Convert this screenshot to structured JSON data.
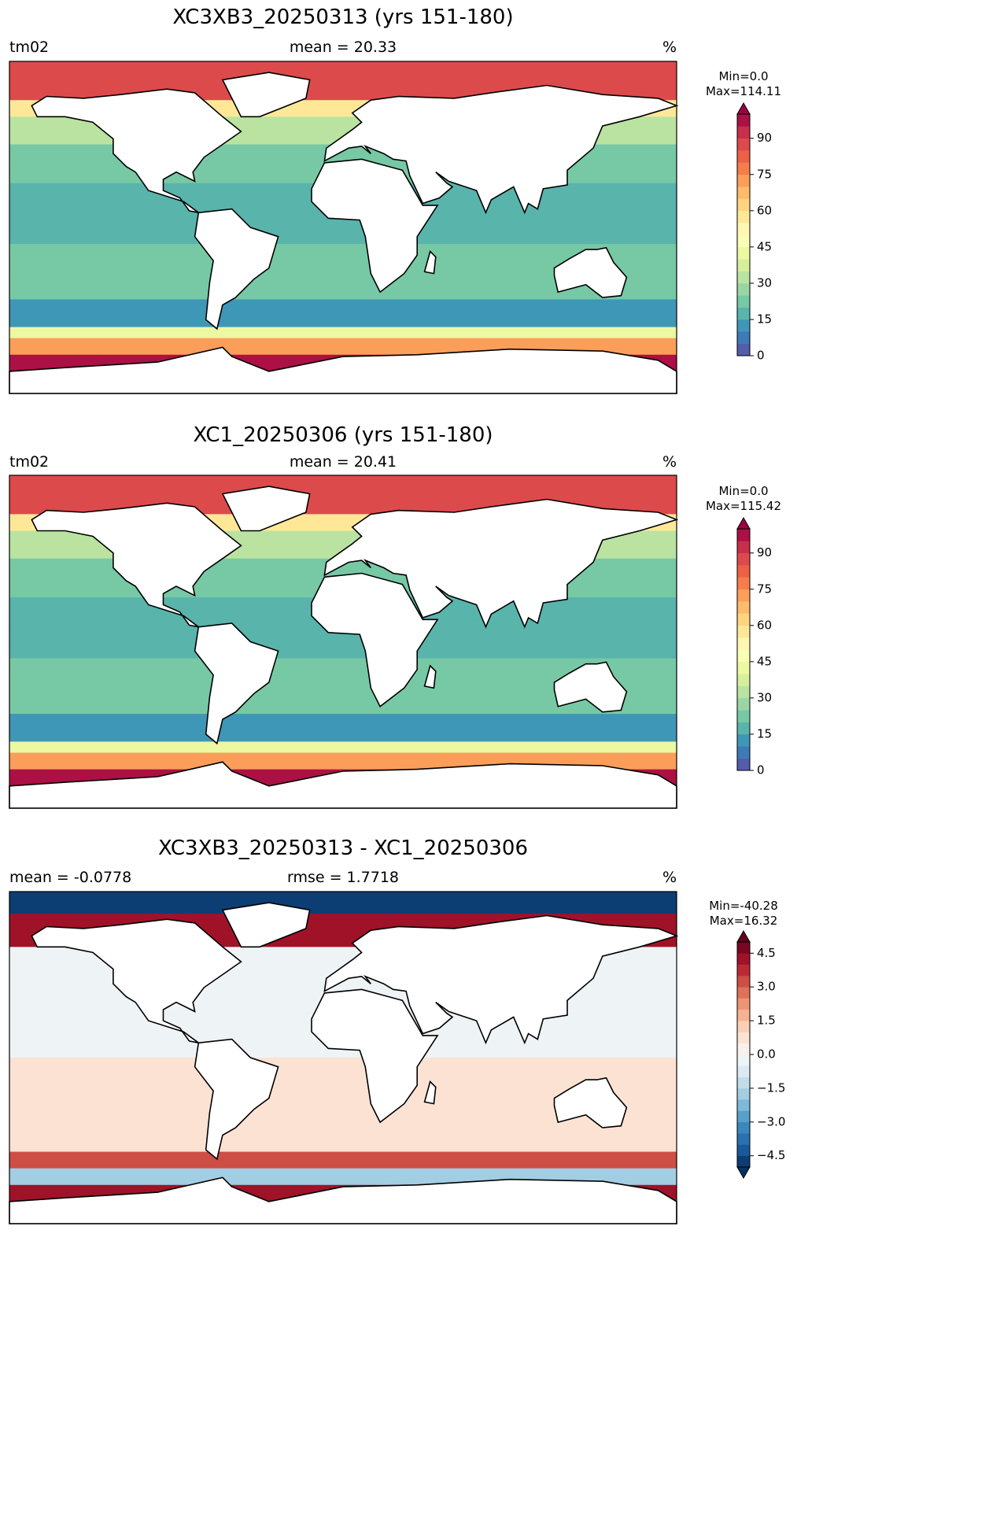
{
  "panels": [
    {
      "title": "XC3XB3_20250313 (yrs 151-180)",
      "left_label": "tm02",
      "center_label": "mean = 20.33",
      "right_label": "%",
      "colorbar": {
        "min_label": "Min=0.0",
        "max_label": "Max=114.11",
        "lim": [
          0,
          100
        ],
        "step": 5,
        "extend": "max",
        "ticks": [
          0,
          15,
          30,
          45,
          60,
          75,
          90
        ],
        "colors": [
          "#5e4fa2",
          "#3288bd",
          "#66c2a5",
          "#abdda4",
          "#e6f598",
          "#ffffbf",
          "#fee08b",
          "#fdae61",
          "#f46d43",
          "#d53e4f",
          "#9e0142"
        ]
      }
    },
    {
      "title": "XC1_20250306 (yrs 151-180)",
      "left_label": "tm02",
      "center_label": "mean = 20.41",
      "right_label": "%",
      "colorbar": {
        "min_label": "Min=0.0",
        "max_label": "Max=115.42",
        "lim": [
          0,
          100
        ],
        "step": 5,
        "extend": "max",
        "ticks": [
          0,
          15,
          30,
          45,
          60,
          75,
          90
        ],
        "colors": [
          "#5e4fa2",
          "#3288bd",
          "#66c2a5",
          "#abdda4",
          "#e6f598",
          "#ffffbf",
          "#fee08b",
          "#fdae61",
          "#f46d43",
          "#d53e4f",
          "#9e0142"
        ]
      }
    },
    {
      "title": "XC3XB3_20250313 - XC1_20250306",
      "left_label": "mean = -0.0778",
      "center_label": "rmse = 1.7718",
      "right_label": "%",
      "colorbar": {
        "min_label": "Min=-40.28",
        "max_label": "Max=16.32",
        "lim": [
          -5,
          5
        ],
        "step": 0.5,
        "extend": "both",
        "ticks": [
          {
            "value": -4.5,
            "label": "−4.5"
          },
          {
            "value": -3,
            "label": "−3.0"
          },
          {
            "value": -1.5,
            "label": "−1.5"
          },
          {
            "value": 0,
            "label": "0.0"
          },
          {
            "value": 1.5,
            "label": "1.5"
          },
          {
            "value": 3,
            "label": "3.0"
          },
          {
            "value": 4.5,
            "label": "4.5"
          }
        ],
        "colors": [
          "#053061",
          "#2166ac",
          "#4393c3",
          "#92c5de",
          "#d1e5f0",
          "#f7f7f7",
          "#fddbc7",
          "#f4a582",
          "#d6604d",
          "#b2182b",
          "#67001f"
        ]
      }
    }
  ]
}
